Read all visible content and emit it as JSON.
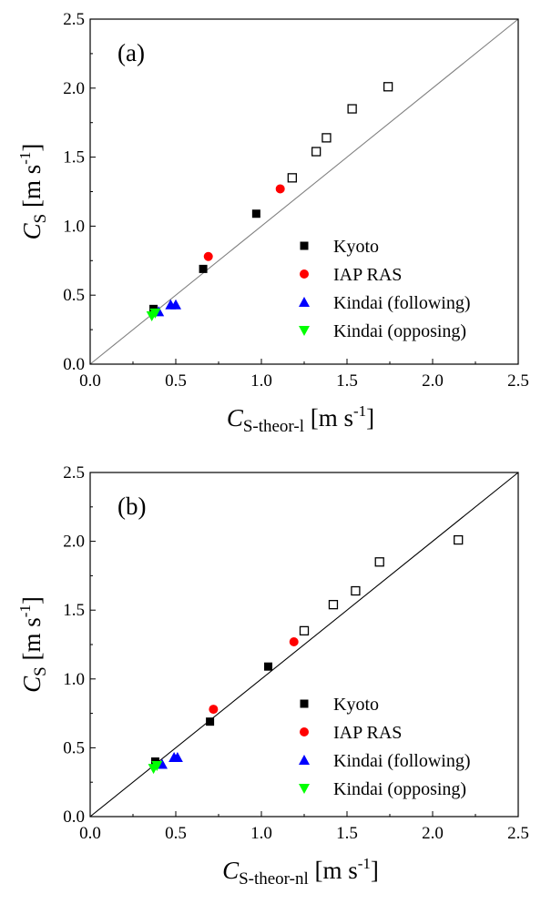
{
  "chart_data": [
    {
      "type": "scatter",
      "panel_label": "(a)",
      "xlabel": {
        "main": "C",
        "sub": "S-theor-l",
        "unit_pre": " [m s",
        "unit_sup": "-1",
        "unit_post": "]"
      },
      "ylabel": {
        "main": "C",
        "sub": "S",
        "unit_pre": " [m s",
        "unit_sup": "-1",
        "unit_post": "]"
      },
      "xlim": [
        0.0,
        2.5
      ],
      "ylim": [
        0.0,
        2.5
      ],
      "xticks": [
        "0.0",
        "0.5",
        "1.0",
        "1.5",
        "2.0",
        "2.5"
      ],
      "yticks": [
        "0.0",
        "0.5",
        "1.0",
        "1.5",
        "2.0",
        "2.5"
      ],
      "reference_line": "y = x",
      "reference_line_color": "#808080",
      "legend_position": "lower-right",
      "series": [
        {
          "name": "Kyoto",
          "marker": "square",
          "color": "#000000",
          "points": [
            [
              0.37,
              0.4
            ],
            [
              0.66,
              0.69
            ],
            [
              0.97,
              1.09
            ]
          ]
        },
        {
          "name": "IAP RAS",
          "marker": "circle",
          "color": "#ff0000",
          "points": [
            [
              0.69,
              0.78
            ],
            [
              1.11,
              1.27
            ]
          ]
        },
        {
          "name": "Kindai (following)",
          "marker": "triangle-up",
          "color": "#0000ff",
          "points": [
            [
              0.4,
              0.38
            ],
            [
              0.47,
              0.43
            ],
            [
              0.5,
              0.43
            ]
          ]
        },
        {
          "name": "Kindai (opposing)",
          "marker": "triangle-down",
          "color": "#00ff00",
          "points": [
            [
              0.36,
              0.35
            ],
            [
              0.38,
              0.37
            ]
          ]
        },
        {
          "name": "",
          "marker": "open-square",
          "color": "#000000",
          "points": [
            [
              1.18,
              1.35
            ],
            [
              1.32,
              1.54
            ],
            [
              1.38,
              1.64
            ],
            [
              1.53,
              1.85
            ],
            [
              1.74,
              2.01
            ]
          ]
        }
      ]
    },
    {
      "type": "scatter",
      "panel_label": "(b)",
      "xlabel": {
        "main": "C",
        "sub": "S-theor-nl",
        "unit_pre": " [m s",
        "unit_sup": "-1",
        "unit_post": "]"
      },
      "ylabel": {
        "main": "C",
        "sub": "S",
        "unit_pre": " [m s",
        "unit_sup": "-1",
        "unit_post": "]"
      },
      "xlim": [
        0.0,
        2.5
      ],
      "ylim": [
        0.0,
        2.5
      ],
      "xticks": [
        "0.0",
        "0.5",
        "1.0",
        "1.5",
        "2.0",
        "2.5"
      ],
      "yticks": [
        "0.0",
        "0.5",
        "1.0",
        "1.5",
        "2.0",
        "2.5"
      ],
      "reference_line": "y = x",
      "reference_line_color": "#000000",
      "legend_position": "lower-right",
      "series": [
        {
          "name": "Kyoto",
          "marker": "square",
          "color": "#000000",
          "points": [
            [
              0.38,
              0.4
            ],
            [
              0.7,
              0.69
            ],
            [
              1.04,
              1.09
            ]
          ]
        },
        {
          "name": "IAP RAS",
          "marker": "circle",
          "color": "#ff0000",
          "points": [
            [
              0.72,
              0.78
            ],
            [
              1.19,
              1.27
            ]
          ]
        },
        {
          "name": "Kindai (following)",
          "marker": "triangle-up",
          "color": "#0000ff",
          "points": [
            [
              0.42,
              0.38
            ],
            [
              0.49,
              0.43
            ],
            [
              0.51,
              0.43
            ]
          ]
        },
        {
          "name": "Kindai (opposing)",
          "marker": "triangle-down",
          "color": "#00ff00",
          "points": [
            [
              0.37,
              0.35
            ],
            [
              0.39,
              0.37
            ]
          ]
        },
        {
          "name": "",
          "marker": "open-square",
          "color": "#000000",
          "points": [
            [
              1.25,
              1.35
            ],
            [
              1.42,
              1.54
            ],
            [
              1.55,
              1.64
            ],
            [
              1.69,
              1.85
            ],
            [
              2.15,
              2.01
            ]
          ]
        }
      ]
    }
  ]
}
